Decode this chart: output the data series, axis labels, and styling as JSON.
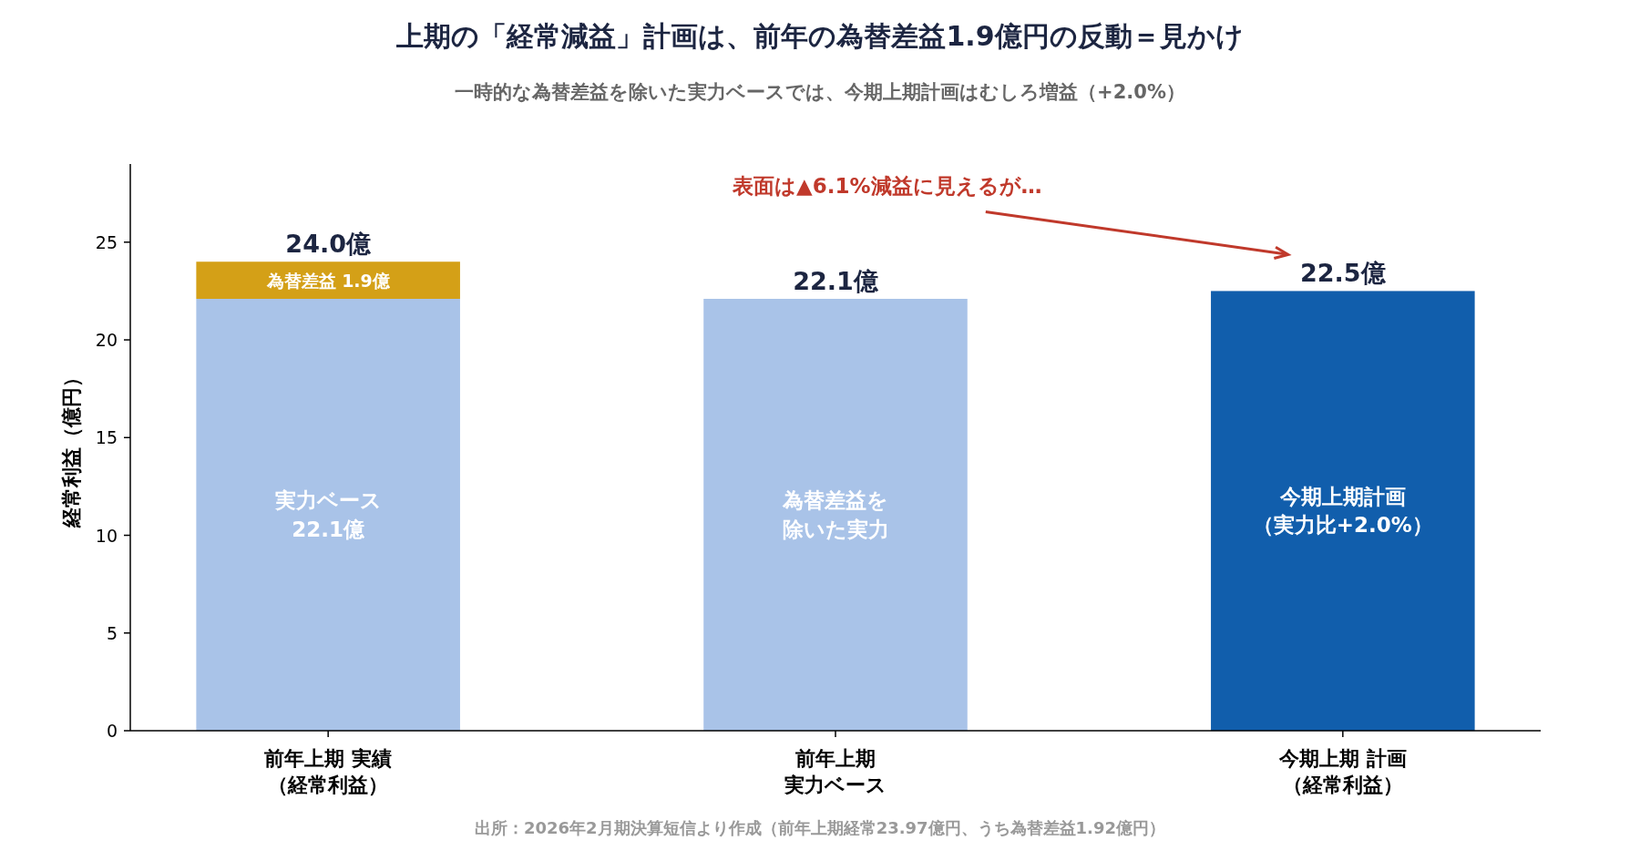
{
  "chart_data": {
    "type": "bar",
    "stacked": true,
    "title": "上期の「経常減益」計画は、前年の為替差益1.9億円の反動＝見かけ",
    "subtitle": "一時的な為替差益を除いた実力ベースでは、今期上期計画はむしろ増益（+2.0%）",
    "ylabel": "経常利益（億円）",
    "categories": [
      "前年上期 実績（経常利益）",
      "前年上期実力ベース",
      "今期上期 計画（経常利益）"
    ],
    "series": [
      {
        "colors": [
          "#a9c3e8",
          "#a9c3e8",
          "#115eac"
        ],
        "values": [
          22.1,
          22.1,
          22.5
        ],
        "value_labels": [
          "実力ベース\n22.1億",
          "為替差益を除いた実力",
          "今期上期計画（実力比+2.0%）"
        ]
      },
      {
        "color": "#d4a017",
        "values": [
          1.9,
          null,
          null
        ],
        "value_labels": [
          "為替差益 1.9億",
          null,
          null
        ]
      }
    ],
    "totals": [
      "24.0億",
      "22.1億",
      "22.5億"
    ],
    "ylim": [
      0,
      29
    ],
    "yticks": [
      0,
      5,
      10,
      15,
      20,
      25
    ],
    "grid": false,
    "annotations": [
      "表面は▲6.1%減益に見えるが…",
      "出所：2026年2月期決算短信より作成（前年上期経常23.97億円、うち為替差益1.92億円）"
    ]
  }
}
